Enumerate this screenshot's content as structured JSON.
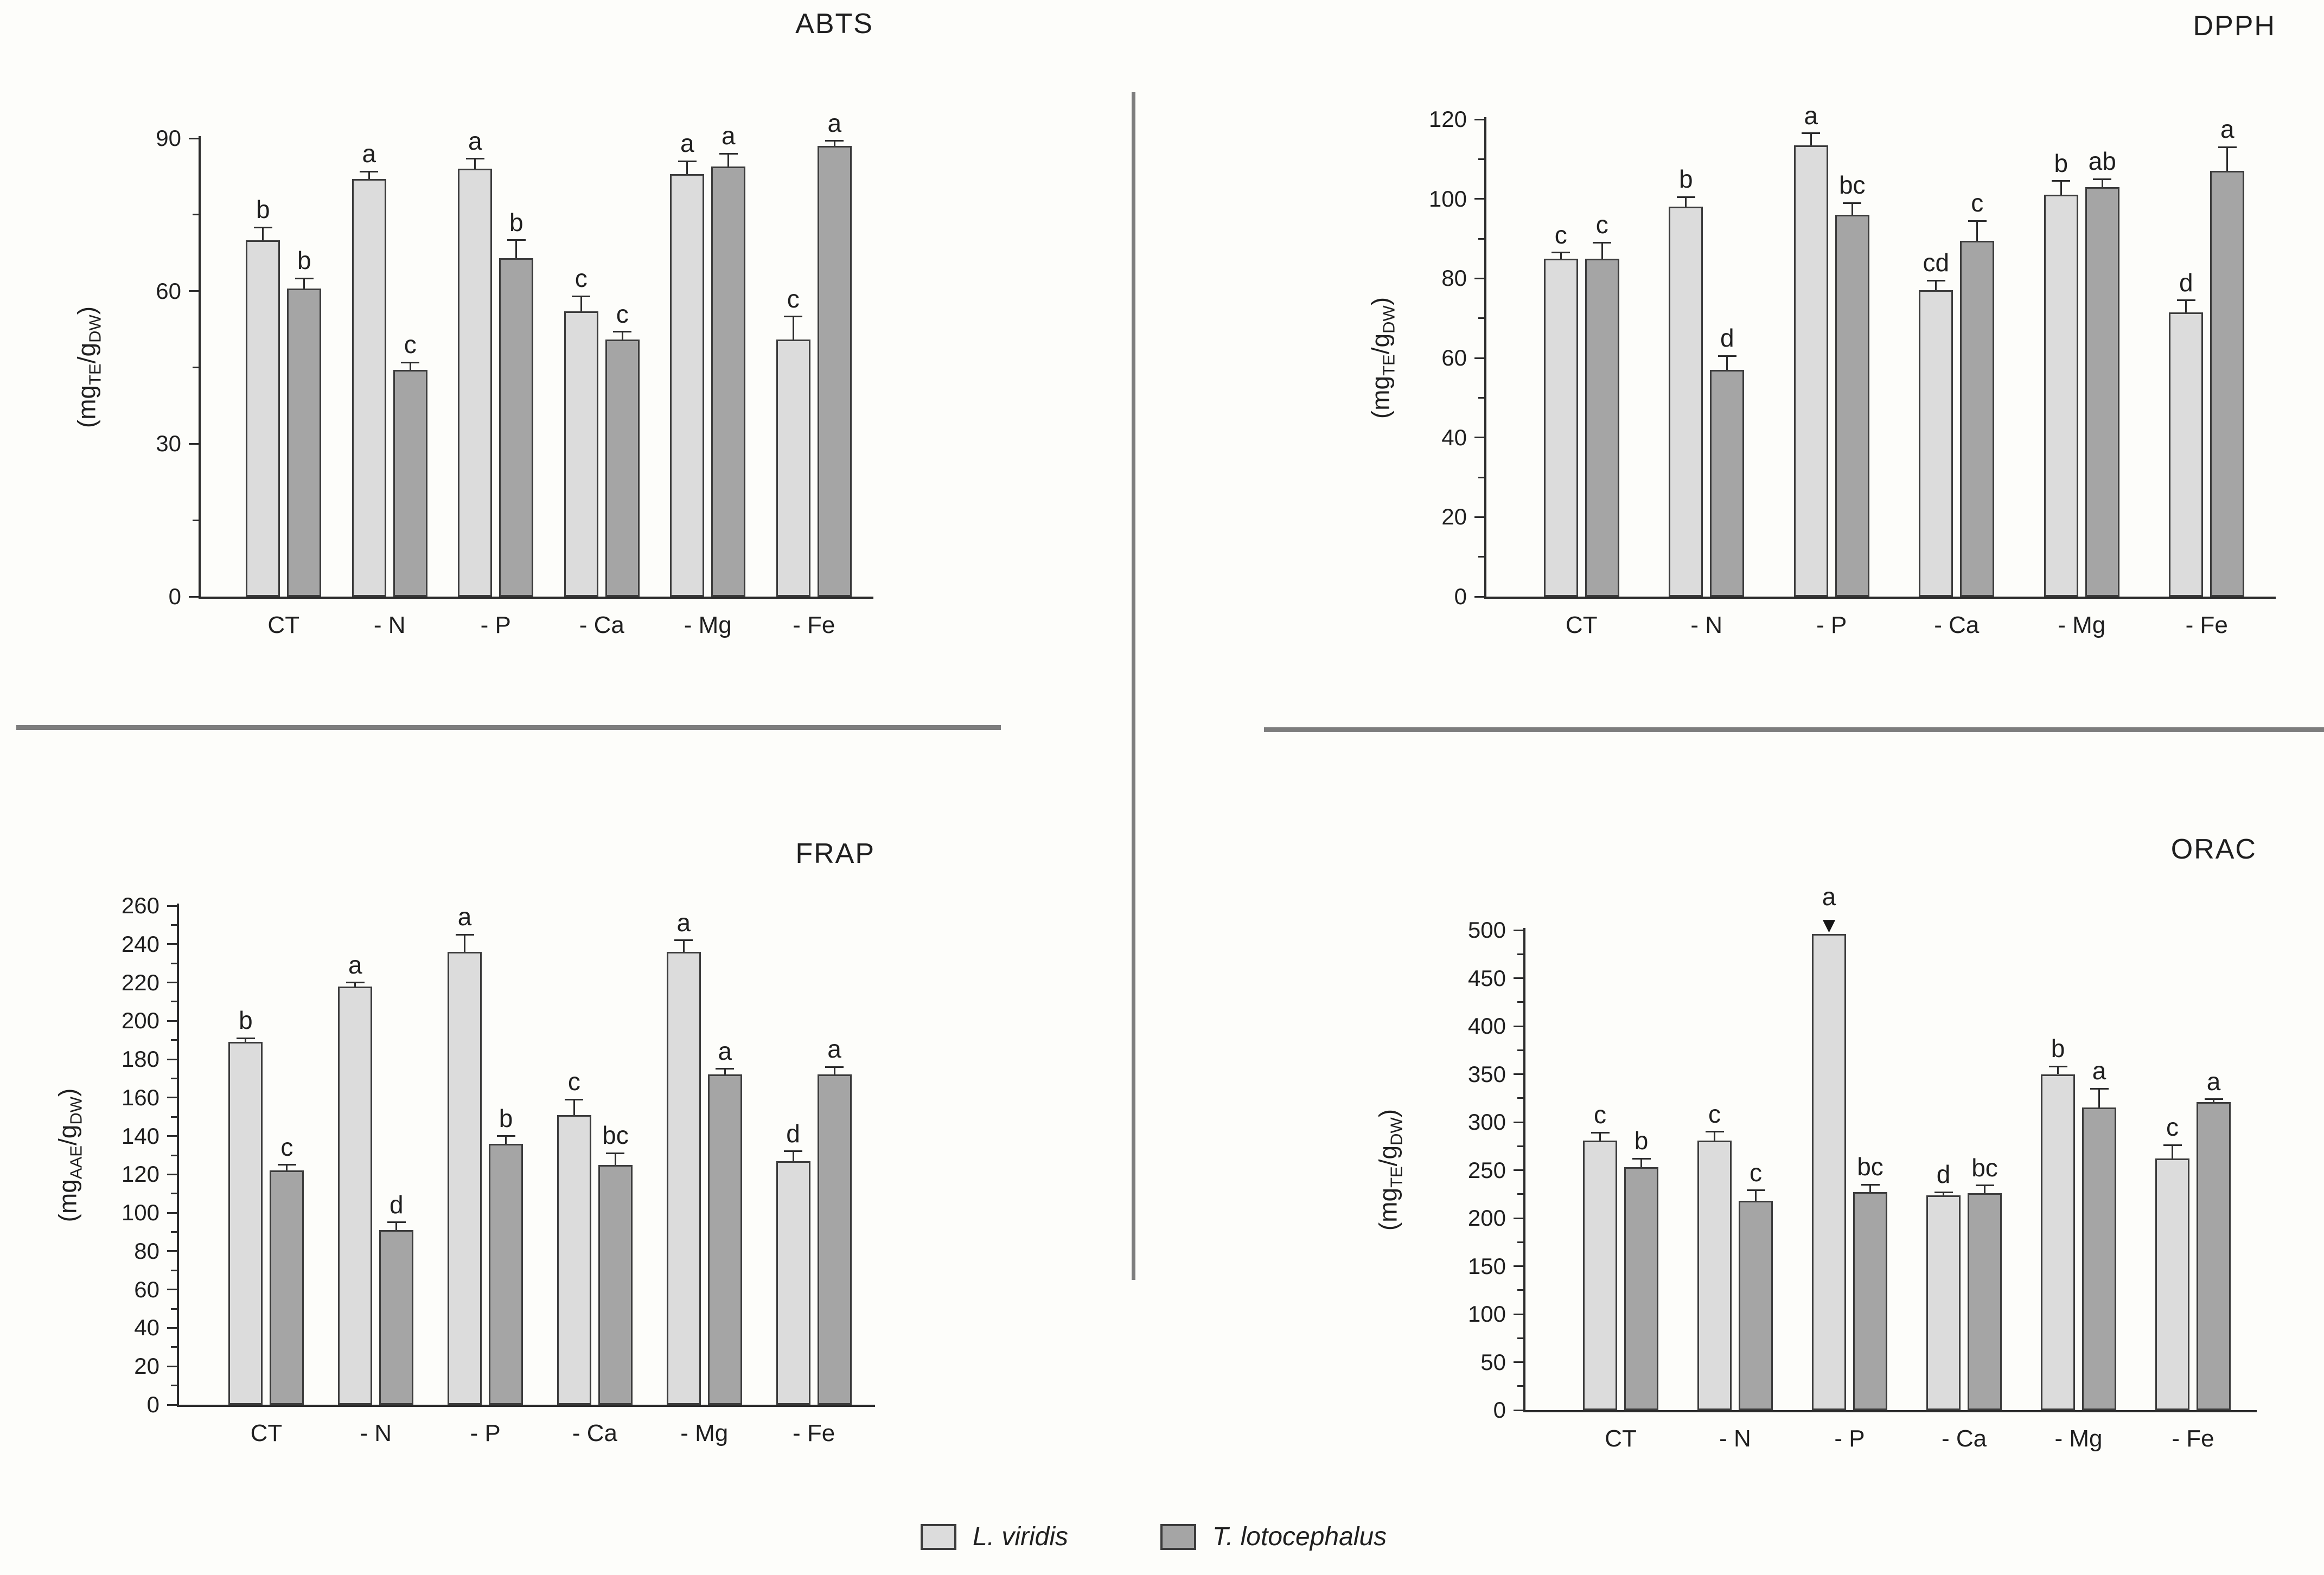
{
  "colors": {
    "background": "#fdfdfa",
    "series1_fill": "#dcdcdc",
    "series2_fill": "#a5a5a5",
    "bar_border": "#3c3c3c",
    "axis": "#2b2b2b",
    "text": "#1f1f1f",
    "divider": "#7d7d7d"
  },
  "legend": {
    "position": "bottom-center",
    "items": [
      {
        "label": "L. viridis",
        "color": "#dcdcdc"
      },
      {
        "label": "T. lotocephalus",
        "color": "#a5a5a5"
      }
    ]
  },
  "chart_data": [
    {
      "id": "abts",
      "type": "bar",
      "title": "ABTS",
      "ylabel_plain": "(mgTE/gDW)",
      "ylabel_parts": [
        {
          "text": "(mg"
        },
        {
          "text": "TE",
          "sub": true
        },
        {
          "text": "/g"
        },
        {
          "text": "DW",
          "sub": true
        },
        {
          "text": ")"
        }
      ],
      "ylim": [
        0,
        90
      ],
      "yticks": [
        0,
        30,
        60,
        90
      ],
      "yticks_minor": [
        15,
        45,
        75
      ],
      "grid": false,
      "categories": [
        "CT",
        "- N",
        "- P",
        "- Ca",
        "- Mg",
        "- Fe"
      ],
      "series": [
        {
          "name": "L. viridis",
          "values": [
            70,
            82,
            84,
            56,
            83,
            50.5
          ],
          "errors": [
            2.5,
            1.5,
            2,
            3,
            2.5,
            4.5
          ],
          "letters": [
            "b",
            "a",
            "a",
            "c",
            "a",
            "c"
          ]
        },
        {
          "name": "T. lotocephalus",
          "values": [
            60.5,
            44.5,
            66.5,
            50.5,
            84.5,
            88.5
          ],
          "errors": [
            2,
            1.5,
            3.5,
            1.5,
            2.5,
            1
          ],
          "letters": [
            "b",
            "c",
            "b",
            "c",
            "a",
            "a"
          ]
        }
      ]
    },
    {
      "id": "dpph",
      "type": "bar",
      "title": "DPPH",
      "ylabel_plain": "(mgTE/gDW)",
      "ylabel_parts": [
        {
          "text": "(mg"
        },
        {
          "text": "TE",
          "sub": true
        },
        {
          "text": "/g"
        },
        {
          "text": "DW",
          "sub": true
        },
        {
          "text": ")"
        }
      ],
      "ylim": [
        0,
        120
      ],
      "yticks": [
        0,
        20,
        40,
        60,
        80,
        100,
        120
      ],
      "yticks_minor": [
        10,
        30,
        50,
        70,
        90,
        110
      ],
      "grid": false,
      "categories": [
        "CT",
        "- N",
        "- P",
        "- Ca",
        "- Mg",
        "- Fe"
      ],
      "series": [
        {
          "name": "L. viridis",
          "values": [
            85,
            98,
            113.5,
            77,
            101,
            71.5
          ],
          "errors": [
            1.5,
            2.5,
            3,
            2.5,
            3.5,
            3
          ],
          "letters": [
            "c",
            "b",
            "a",
            "cd",
            "b",
            "d"
          ]
        },
        {
          "name": "T. lotocephalus",
          "values": [
            85,
            57,
            96,
            89.5,
            103,
            107
          ],
          "errors": [
            4,
            3.5,
            3,
            5,
            2,
            6
          ],
          "letters": [
            "c",
            "d",
            "bc",
            "c",
            "ab",
            "a"
          ]
        }
      ]
    },
    {
      "id": "frap",
      "type": "bar",
      "title": "FRAP",
      "ylabel_plain": "(mgAAE/gDW)",
      "ylabel_parts": [
        {
          "text": "(mg"
        },
        {
          "text": "AAE",
          "sub": true
        },
        {
          "text": "/g"
        },
        {
          "text": "DW",
          "sub": true
        },
        {
          "text": ")"
        }
      ],
      "ylim": [
        0,
        260
      ],
      "yticks": [
        0,
        20,
        40,
        60,
        80,
        100,
        120,
        140,
        160,
        180,
        200,
        220,
        240,
        260
      ],
      "yticks_minor": [
        10,
        30,
        50,
        70,
        90,
        110,
        130,
        150,
        170,
        190,
        210,
        230,
        250
      ],
      "grid": false,
      "categories": [
        "CT",
        "- N",
        "- P",
        "- Ca",
        "- Mg",
        "- Fe"
      ],
      "series": [
        {
          "name": "L. viridis",
          "values": [
            189,
            218,
            236,
            151,
            236,
            127
          ],
          "errors": [
            2,
            2,
            9,
            8,
            6,
            5
          ],
          "letters": [
            "b",
            "a",
            "a",
            "c",
            "a",
            "d"
          ]
        },
        {
          "name": "T. lotocephalus",
          "values": [
            122,
            91,
            136,
            125,
            172,
            172
          ],
          "errors": [
            3,
            4,
            4,
            6,
            3,
            4
          ],
          "letters": [
            "c",
            "d",
            "b",
            "bc",
            "a",
            "a"
          ]
        }
      ]
    },
    {
      "id": "orac",
      "type": "bar",
      "title": "ORAC",
      "ylabel_plain": "(mgTE/gDW)",
      "ylabel_parts": [
        {
          "text": "(mg"
        },
        {
          "text": "TE",
          "sub": true
        },
        {
          "text": "/g"
        },
        {
          "text": "DW",
          "sub": true
        },
        {
          "text": ")"
        }
      ],
      "ylim": [
        0,
        500
      ],
      "yticks": [
        0,
        50,
        100,
        150,
        200,
        250,
        300,
        350,
        400,
        450,
        500
      ],
      "yticks_minor": [
        25,
        75,
        125,
        175,
        225,
        275,
        325,
        375,
        425,
        475
      ],
      "grid": false,
      "categories": [
        "CT",
        "- N",
        "- P",
        "- Ca",
        "- Mg",
        "- Fe"
      ],
      "markers": [
        {
          "series": 0,
          "index": 2,
          "glyph": "▼"
        }
      ],
      "series": [
        {
          "name": "L. viridis",
          "values": [
            281,
            281,
            496,
            224,
            350,
            262
          ],
          "errors": [
            8,
            9,
            0,
            3,
            8,
            14
          ],
          "letters": [
            "c",
            "c",
            "a",
            "d",
            "b",
            "c"
          ]
        },
        {
          "name": "T. lotocephalus",
          "values": [
            253,
            218,
            227,
            226,
            315,
            321
          ],
          "errors": [
            9,
            11,
            8,
            8,
            20,
            3
          ],
          "letters": [
            "b",
            "c",
            "bc",
            "bc",
            "a",
            "a"
          ]
        }
      ]
    }
  ]
}
